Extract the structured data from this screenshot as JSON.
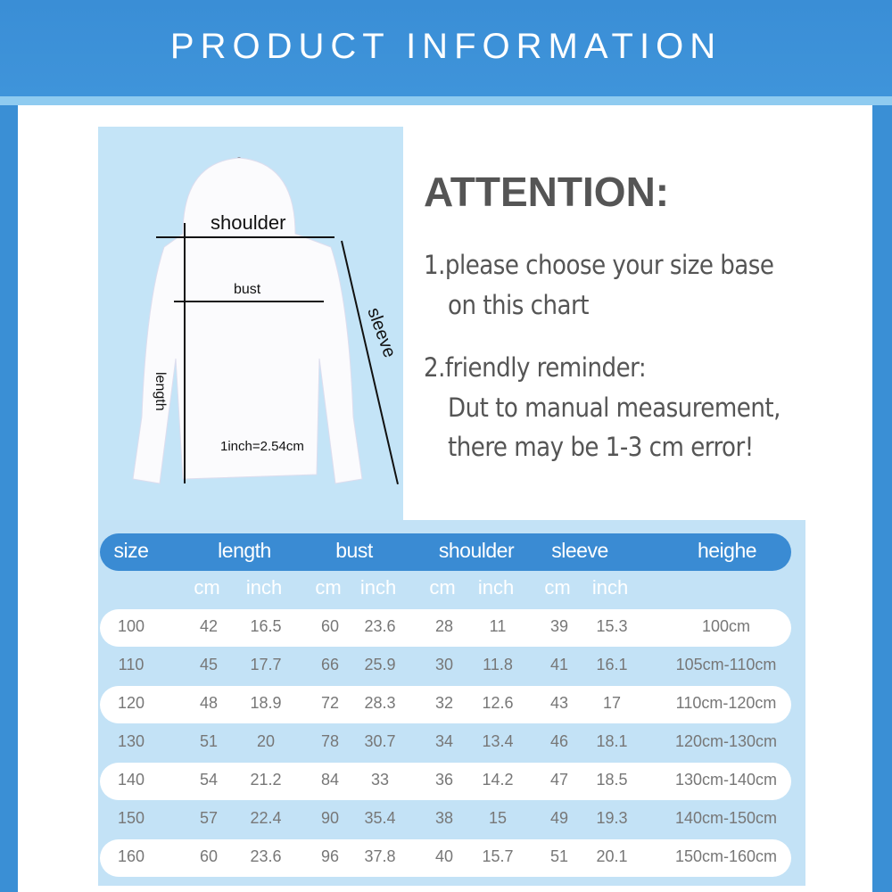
{
  "banner": {
    "title": "PRODUCT INFORMATION"
  },
  "diagram": {
    "shoulder": "shoulder",
    "bust": "bust",
    "length": "length",
    "sleeve": "sleeve",
    "conversion": "1inch=2.54cm"
  },
  "attention": {
    "title": "ATTENTION:",
    "line1a": "1.please choose your size base",
    "line1b": "on this chart",
    "line2a": "2.friendly reminder:",
    "line2b": "Dut to manual measurement,",
    "line2c": "there may be 1-3 cm error!"
  },
  "table": {
    "headers": [
      "size",
      "length",
      "bust",
      "shoulder",
      "sleeve",
      "heighe"
    ],
    "units": [
      "cm",
      "inch",
      "cm",
      "inch",
      "cm",
      "inch",
      "cm",
      "inch"
    ],
    "rows": [
      [
        "100",
        "42",
        "16.5",
        "60",
        "23.6",
        "28",
        "11",
        "39",
        "15.3",
        "100cm"
      ],
      [
        "110",
        "45",
        "17.7",
        "66",
        "25.9",
        "30",
        "11.8",
        "41",
        "16.1",
        "105cm-110cm"
      ],
      [
        "120",
        "48",
        "18.9",
        "72",
        "28.3",
        "32",
        "12.6",
        "43",
        "17",
        "110cm-120cm"
      ],
      [
        "130",
        "51",
        "20",
        "78",
        "30.7",
        "34",
        "13.4",
        "46",
        "18.1",
        "120cm-130cm"
      ],
      [
        "140",
        "54",
        "21.2",
        "84",
        "33",
        "36",
        "14.2",
        "47",
        "18.5",
        "130cm-140cm"
      ],
      [
        "150",
        "57",
        "22.4",
        "90",
        "35.4",
        "38",
        "15",
        "49",
        "19.3",
        "140cm-150cm"
      ],
      [
        "160",
        "60",
        "23.6",
        "96",
        "37.8",
        "40",
        "15.7",
        "51",
        "20.1",
        "150cm-160cm"
      ]
    ]
  }
}
